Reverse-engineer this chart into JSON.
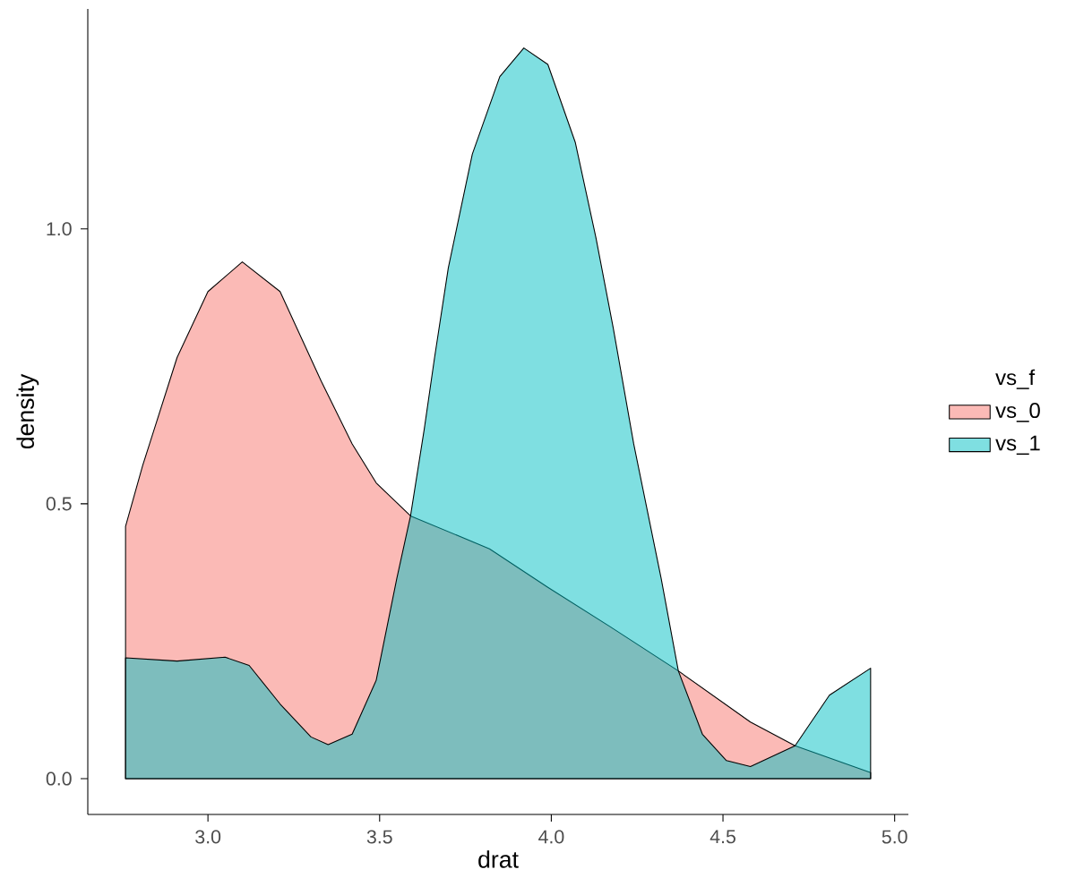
{
  "chart_data": {
    "type": "area",
    "xlabel": "drat",
    "ylabel": "density",
    "legend_title": "vs_f",
    "legend": "right",
    "grid": false,
    "xlim": [
      2.65,
      5.04
    ],
    "ylim": [
      -0.065,
      1.4
    ],
    "xticks": [
      {
        "value": 3,
        "label": "3.0"
      },
      {
        "value": 3.5,
        "label": "3.5"
      },
      {
        "value": 4,
        "label": "4.0"
      },
      {
        "value": 4.5,
        "label": "4.5"
      },
      {
        "value": 5,
        "label": "5.0"
      }
    ],
    "yticks": [
      {
        "value": 0,
        "label": "0.0"
      },
      {
        "value": 0.5,
        "label": "0.5"
      },
      {
        "value": 1,
        "label": "1.0"
      }
    ],
    "series": [
      {
        "name": "vs_0",
        "color": "#f8766d",
        "x": [
          2.76,
          2.81,
          2.83,
          2.91,
          3.0,
          3.1,
          3.21,
          3.33,
          3.42,
          3.49,
          3.59,
          3.82,
          3.99,
          4.17,
          4.37,
          4.58,
          4.71,
          4.93
        ],
        "values": [
          0.459,
          0.57,
          0.609,
          0.766,
          0.886,
          0.94,
          0.886,
          0.723,
          0.609,
          0.538,
          0.478,
          0.418,
          0.348,
          0.277,
          0.196,
          0.103,
          0.06,
          0.011
        ]
      },
      {
        "name": "vs_1",
        "color": "#00bfc4",
        "x": [
          2.76,
          2.91,
          3.05,
          3.12,
          3.21,
          3.3,
          3.35,
          3.42,
          3.49,
          3.55,
          3.59,
          3.63,
          3.66,
          3.7,
          3.77,
          3.85,
          3.92,
          3.99,
          4.07,
          4.13,
          4.18,
          4.24,
          4.32,
          4.37,
          4.44,
          4.51,
          4.58,
          4.71,
          4.81,
          4.93
        ],
        "values": [
          0.22,
          0.214,
          0.221,
          0.206,
          0.136,
          0.076,
          0.062,
          0.081,
          0.179,
          0.364,
          0.478,
          0.636,
          0.766,
          0.929,
          1.136,
          1.277,
          1.329,
          1.299,
          1.157,
          0.984,
          0.821,
          0.609,
          0.364,
          0.196,
          0.081,
          0.033,
          0.022,
          0.06,
          0.152,
          0.201
        ]
      }
    ]
  }
}
